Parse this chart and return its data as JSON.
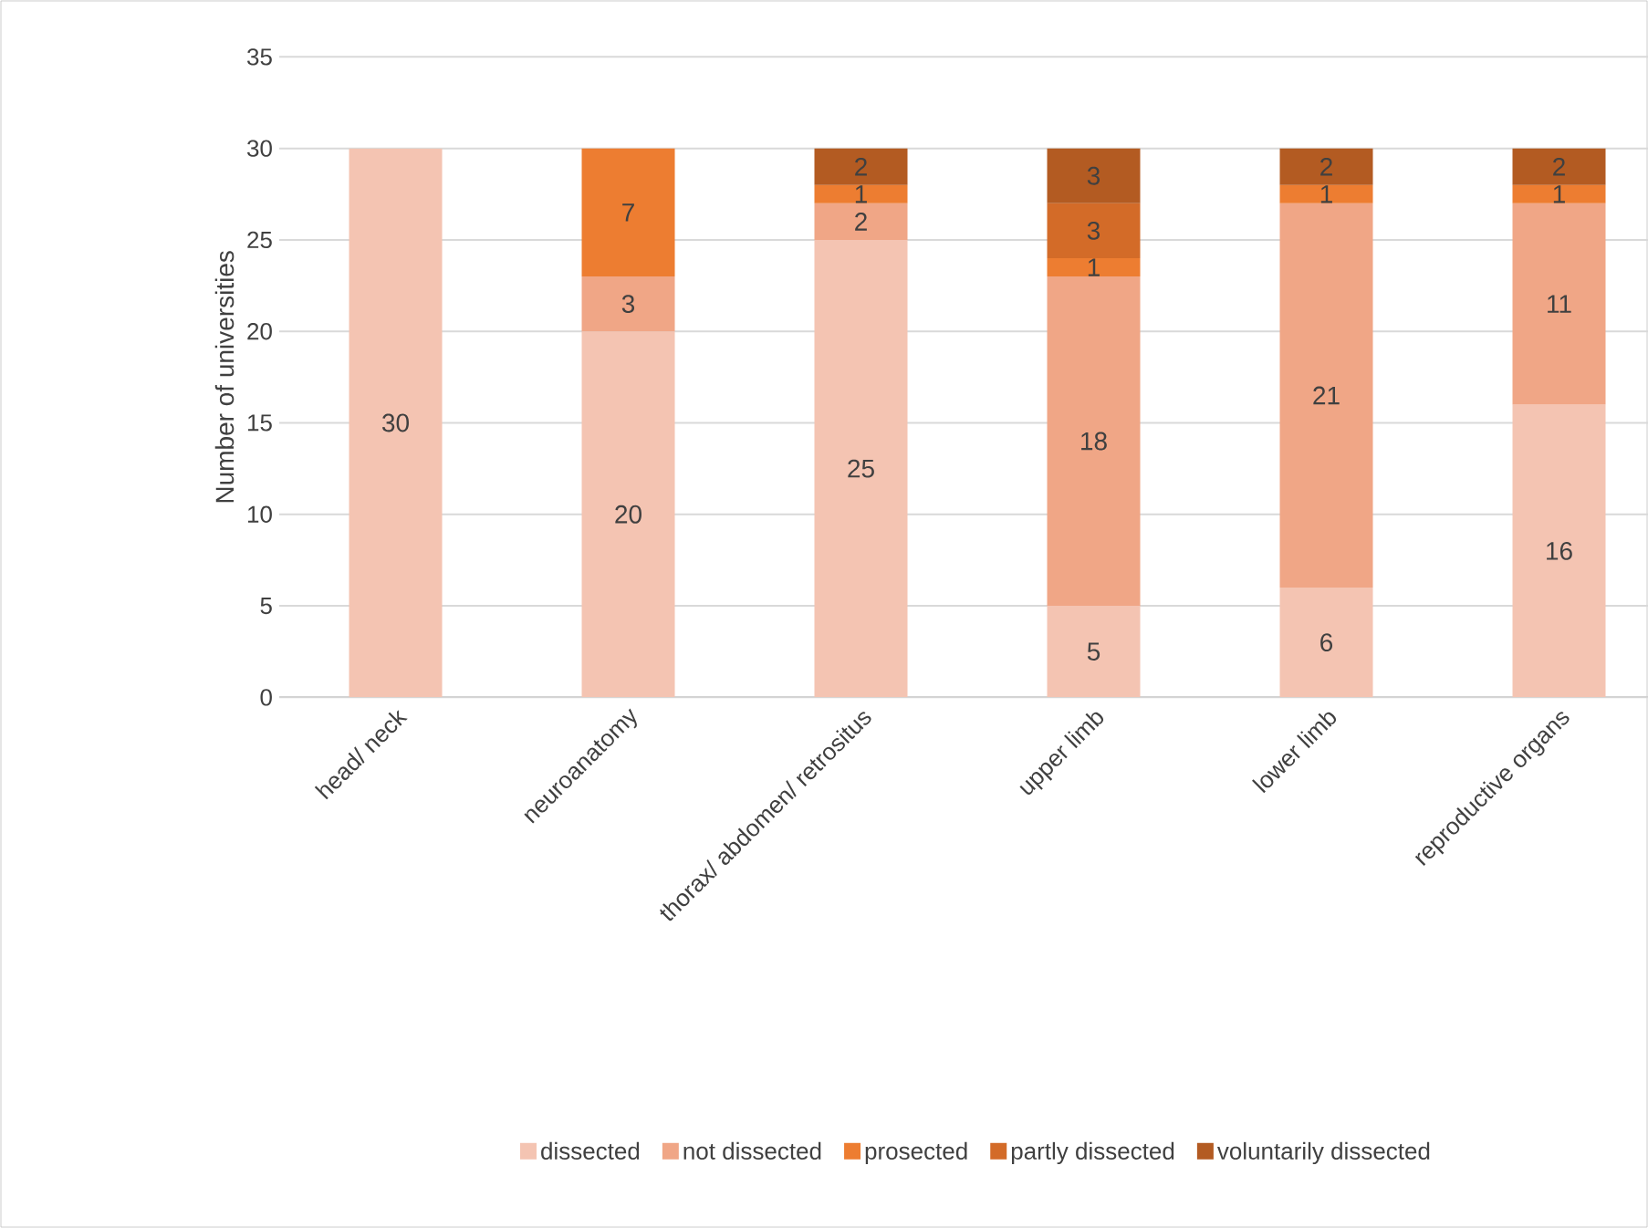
{
  "chart_data": {
    "type": "bar",
    "stacked": true,
    "ylabel": "Number of universities",
    "categories": [
      "head/ neck",
      "neuroanatomy",
      "thorax/ abdomen/ retrositus",
      "upper limb",
      "lower limb",
      "reproductive organs"
    ],
    "series": [
      {
        "name": "dissected",
        "color": "#f4c4b2",
        "values": [
          30,
          20,
          25,
          5,
          6,
          16
        ]
      },
      {
        "name": "not dissected",
        "color": "#f0a686",
        "values": [
          null,
          3,
          2,
          18,
          21,
          11
        ]
      },
      {
        "name": "prosected",
        "color": "#ed7d31",
        "values": [
          null,
          7,
          1,
          1,
          1,
          1
        ]
      },
      {
        "name": "partly dissected",
        "color": "#d36b28",
        "values": [
          null,
          null,
          null,
          3,
          null,
          null
        ]
      },
      {
        "name": "voluntarily dissected",
        "color": "#b35b22",
        "values": [
          null,
          null,
          2,
          3,
          2,
          2
        ]
      }
    ],
    "ylim": [
      0,
      35
    ],
    "yticks": [
      0,
      5,
      10,
      15,
      20,
      25,
      30,
      35
    ],
    "grid": "y",
    "legend": "bottom",
    "data_labels": true
  }
}
